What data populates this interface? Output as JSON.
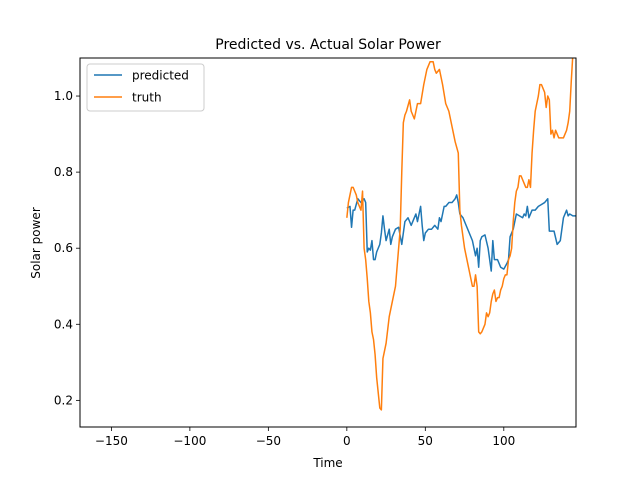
{
  "chart_data": {
    "type": "line",
    "title": "Predicted vs. Actual Solar Power",
    "xlabel": "Time",
    "ylabel": "Solar power",
    "xlim": [
      -170,
      146
    ],
    "ylim": [
      0.13,
      1.1
    ],
    "xticks": [
      -150,
      -100,
      -50,
      0,
      50,
      100
    ],
    "yticks": [
      0.2,
      0.4,
      0.6,
      0.8,
      1.0
    ],
    "xtick_labels": [
      "−150",
      "−100",
      "−50",
      "0",
      "50",
      "100"
    ],
    "ytick_labels": [
      "0.2",
      "0.4",
      "0.6",
      "0.8",
      "1.0"
    ],
    "grid": false,
    "legend_position": "top-left",
    "series": [
      {
        "name": "predicted",
        "color": "#1f77b4",
        "x": [
          0,
          2,
          3,
          4,
          5,
          7,
          9,
          11,
          12,
          13,
          14,
          15,
          16,
          17,
          18,
          19,
          21,
          22,
          23,
          24,
          25,
          27,
          28,
          29,
          31,
          33,
          35,
          37,
          39,
          41,
          42,
          44,
          45,
          46,
          47,
          48,
          49,
          50,
          52,
          54,
          56,
          58,
          59,
          60,
          61,
          62,
          63,
          64,
          65,
          67,
          69,
          70,
          71,
          72,
          74,
          76,
          78,
          80,
          82,
          83,
          84,
          85,
          86,
          88,
          90,
          92,
          93,
          94,
          96,
          98,
          100,
          102,
          103,
          104,
          106,
          108,
          110,
          112,
          113,
          114,
          115,
          116,
          118,
          120,
          122,
          124,
          126,
          128,
          129,
          130,
          132,
          134,
          136,
          138,
          140,
          141,
          142,
          144,
          146
        ],
        "y": [
          0.705,
          0.71,
          0.655,
          0.7,
          0.7,
          0.73,
          0.72,
          0.73,
          0.72,
          0.59,
          0.6,
          0.595,
          0.62,
          0.57,
          0.57,
          0.59,
          0.61,
          0.64,
          0.685,
          0.65,
          0.62,
          0.65,
          0.61,
          0.63,
          0.65,
          0.655,
          0.61,
          0.67,
          0.68,
          0.66,
          0.67,
          0.69,
          0.67,
          0.69,
          0.71,
          0.66,
          0.62,
          0.64,
          0.65,
          0.65,
          0.66,
          0.65,
          0.68,
          0.67,
          0.69,
          0.71,
          0.71,
          0.715,
          0.72,
          0.72,
          0.73,
          0.74,
          0.72,
          0.69,
          0.68,
          0.66,
          0.64,
          0.62,
          0.58,
          0.6,
          0.55,
          0.62,
          0.63,
          0.635,
          0.6,
          0.54,
          0.62,
          0.57,
          0.57,
          0.55,
          0.545,
          0.56,
          0.57,
          0.63,
          0.65,
          0.69,
          0.685,
          0.68,
          0.69,
          0.685,
          0.71,
          0.68,
          0.7,
          0.7,
          0.71,
          0.715,
          0.72,
          0.73,
          0.645,
          0.645,
          0.645,
          0.61,
          0.62,
          0.68,
          0.7,
          0.685,
          0.69,
          0.685,
          0.685
        ]
      },
      {
        "name": "truth",
        "color": "#ff7f0e",
        "x": [
          0,
          1,
          2,
          3,
          4,
          5,
          6,
          7,
          9,
          10,
          11,
          12,
          13,
          14,
          15,
          16,
          17,
          18,
          19,
          20,
          21,
          22,
          23,
          24,
          25,
          27,
          29,
          31,
          33,
          34,
          35,
          36,
          37,
          38,
          40,
          41,
          43,
          45,
          47,
          49,
          50,
          51,
          53,
          55,
          56,
          57,
          59,
          61,
          63,
          65,
          67,
          69,
          71,
          72,
          73,
          74,
          75,
          76,
          77,
          78,
          79,
          80,
          81,
          82,
          83,
          84,
          85,
          86,
          88,
          89,
          90,
          91,
          92,
          93,
          94,
          95,
          96,
          97,
          98,
          99,
          100,
          101,
          102,
          103,
          104,
          105,
          106,
          107,
          108,
          109,
          110,
          111,
          112,
          113,
          114,
          115,
          116,
          117,
          118,
          119,
          120,
          121,
          122,
          123,
          124,
          125,
          126,
          127,
          128,
          129,
          130,
          131,
          132,
          133,
          134,
          135,
          136,
          137,
          138,
          139,
          140,
          141,
          142,
          143,
          144,
          145
        ],
        "y": [
          0.68,
          0.72,
          0.74,
          0.76,
          0.76,
          0.75,
          0.74,
          0.72,
          0.7,
          0.75,
          0.6,
          0.57,
          0.52,
          0.46,
          0.43,
          0.38,
          0.36,
          0.32,
          0.26,
          0.22,
          0.18,
          0.175,
          0.31,
          0.33,
          0.35,
          0.42,
          0.46,
          0.5,
          0.6,
          0.65,
          0.8,
          0.93,
          0.95,
          0.96,
          0.99,
          0.96,
          0.94,
          0.98,
          0.98,
          1.03,
          1.05,
          1.07,
          1.09,
          1.09,
          1.07,
          1.06,
          1.07,
          1.03,
          0.98,
          0.96,
          0.92,
          0.88,
          0.85,
          0.7,
          0.66,
          0.63,
          0.6,
          0.58,
          0.56,
          0.54,
          0.52,
          0.5,
          0.5,
          0.53,
          0.5,
          0.38,
          0.375,
          0.38,
          0.4,
          0.43,
          0.42,
          0.43,
          0.46,
          0.48,
          0.49,
          0.46,
          0.47,
          0.47,
          0.49,
          0.5,
          0.52,
          0.53,
          0.53,
          0.57,
          0.58,
          0.6,
          0.67,
          0.72,
          0.75,
          0.76,
          0.79,
          0.79,
          0.78,
          0.77,
          0.76,
          0.76,
          0.78,
          0.76,
          0.85,
          0.91,
          0.96,
          0.98,
          1.0,
          1.03,
          1.03,
          1.02,
          1.01,
          0.97,
          1.0,
          0.99,
          0.9,
          0.91,
          0.89,
          0.91,
          0.9,
          0.89,
          0.89,
          0.89,
          0.89,
          0.9,
          0.91,
          0.93,
          0.96,
          1.04,
          1.11,
          1.2
        ]
      }
    ]
  }
}
